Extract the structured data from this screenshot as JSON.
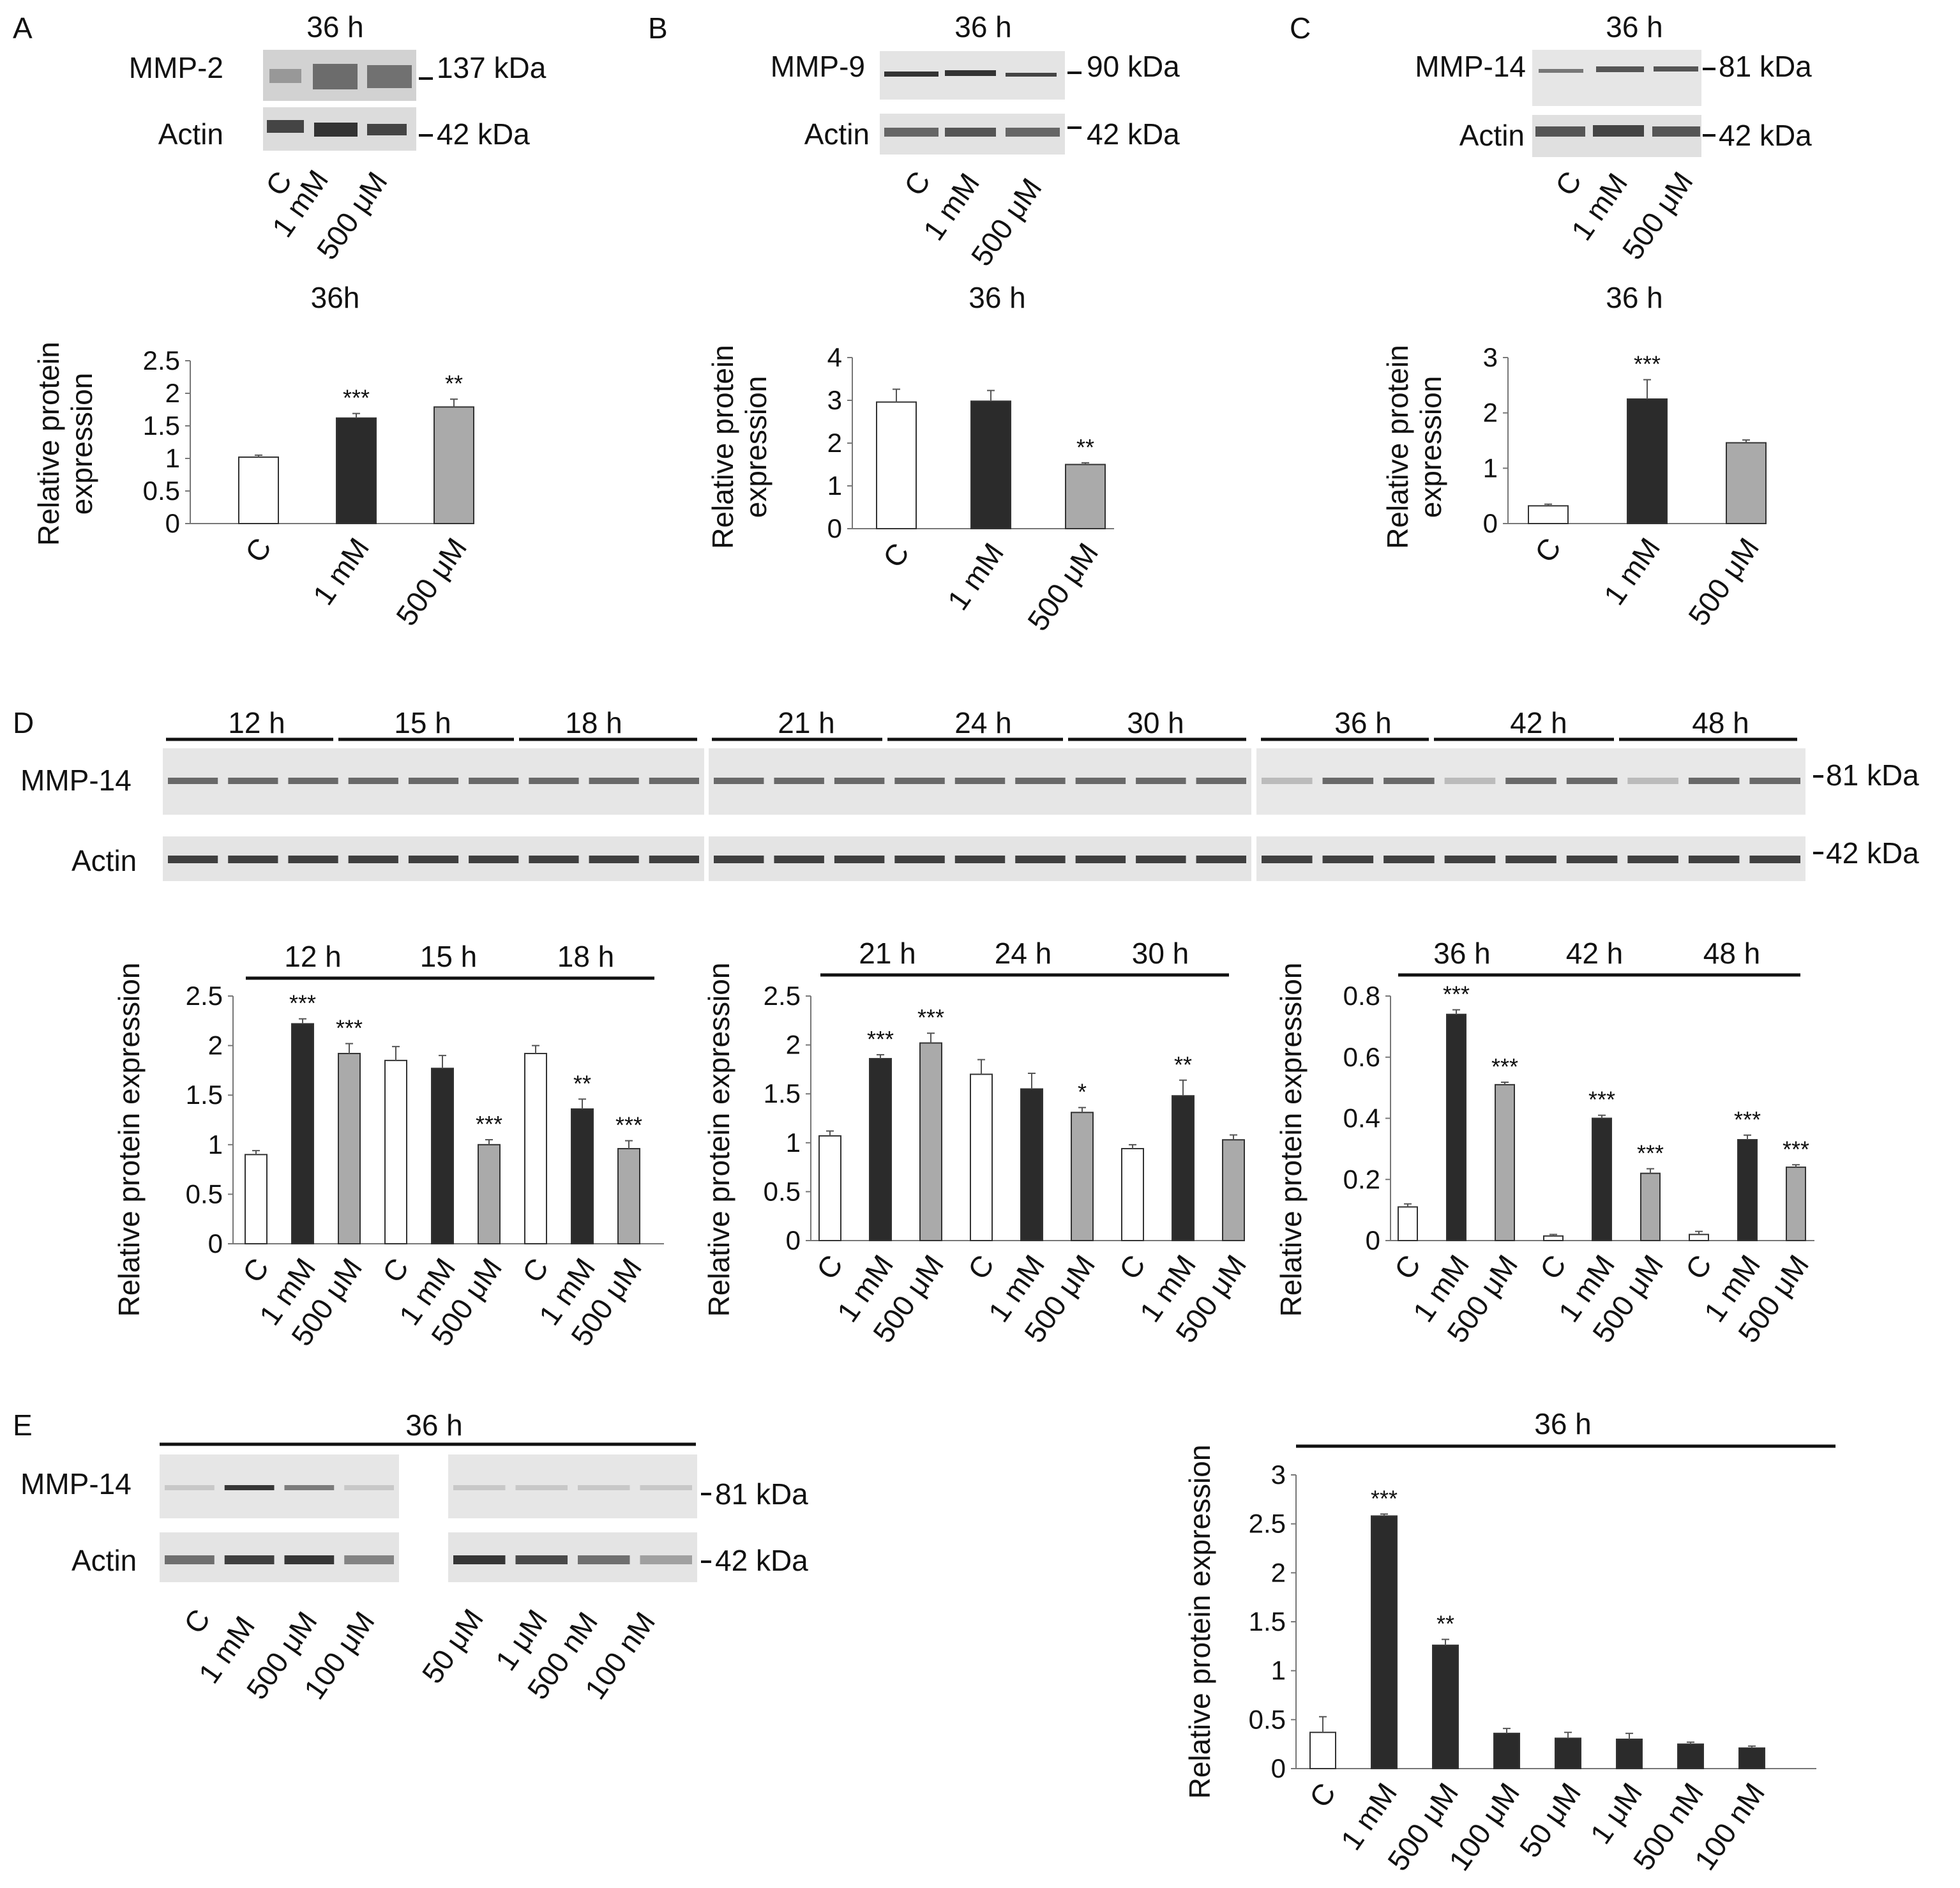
{
  "bar_colors": {
    "control": "#ffffff",
    "one_mM": "#2b2b2b",
    "five_hundred_uM": "#aaaaaa",
    "dark": "#2b2b2b"
  },
  "panel_letters": [
    "A",
    "B",
    "C",
    "D",
    "E"
  ],
  "y_axis_label": "Relative protein",
  "y_axis_label_line2": "expression",
  "y_axis_label_single": "Relative protein expression",
  "panelA": {
    "time_header": "36 h",
    "chart_title": "36h",
    "blot_labels": [
      "MMP-2",
      "Actin"
    ],
    "kda_labels": [
      "137 kDa",
      "42 kDa"
    ],
    "lane_labels": [
      "C",
      "1 mM",
      "500 μM"
    ]
  },
  "panelB": {
    "time_header": "36 h",
    "chart_title": "36 h",
    "blot_labels": [
      "MMP-9",
      "Actin"
    ],
    "kda_labels": [
      "90 kDa",
      "42 kDa"
    ],
    "lane_labels": [
      "C",
      "1 mM",
      "500 μM"
    ]
  },
  "panelC": {
    "time_header": "36 h",
    "chart_title": "36 h",
    "blot_labels": [
      "MMP-14",
      "Actin"
    ],
    "kda_labels": [
      "81 kDa",
      "42 kDa"
    ],
    "lane_labels": [
      "C",
      "1 mM",
      "500 μM"
    ]
  },
  "panelD": {
    "blot_labels": [
      "MMP-14",
      "Actin"
    ],
    "kda_labels": [
      "81 kDa",
      "42 kDa"
    ],
    "time_groups": [
      [
        "12 h",
        "15 h",
        "18 h"
      ],
      [
        "21 h",
        "24 h",
        "30 h"
      ],
      [
        "36 h",
        "42 h",
        "48 h"
      ]
    ]
  },
  "panelE": {
    "time_header": "36 h",
    "blot_labels": [
      "MMP-14",
      "Actin"
    ],
    "kda_labels": [
      "81 kDa",
      "42 kDa"
    ],
    "lane_labels": [
      "C",
      "1 mM",
      "500 μM",
      "100 μM",
      "50 μM",
      "1 μM",
      "500 nM",
      "100 nM"
    ]
  },
  "chart_data": [
    {
      "id": "A",
      "type": "bar",
      "title": "36h",
      "ylabel": "Relative protein expression",
      "categories": [
        "C",
        "1 mM",
        "500 μM"
      ],
      "values": [
        1.02,
        1.62,
        1.79
      ],
      "errors": [
        0.03,
        0.07,
        0.12
      ],
      "significance": [
        "",
        "***",
        "**"
      ],
      "ylim": [
        0,
        2.5
      ],
      "yticks": [
        "0",
        "0.5",
        "1",
        "1.5",
        "2",
        "2.5"
      ]
    },
    {
      "id": "B",
      "type": "bar",
      "title": "36 h",
      "ylabel": "Relative protein expression",
      "categories": [
        "C",
        "1 mM",
        "500 μM"
      ],
      "values": [
        2.96,
        2.98,
        1.5
      ],
      "errors": [
        0.3,
        0.25,
        0.04
      ],
      "significance": [
        "",
        "",
        "**"
      ],
      "ylim": [
        0,
        4
      ],
      "yticks": [
        "0",
        "1",
        "2",
        "3",
        "4"
      ]
    },
    {
      "id": "C",
      "type": "bar",
      "title": "36 h",
      "ylabel": "Relative protein expression",
      "categories": [
        "C",
        "1 mM",
        "500 μM"
      ],
      "values": [
        0.32,
        2.25,
        1.46
      ],
      "errors": [
        0.03,
        0.35,
        0.05
      ],
      "significance": [
        "",
        "***",
        ""
      ],
      "ylim": [
        0,
        3
      ],
      "yticks": [
        "0",
        "1",
        "2",
        "3"
      ]
    },
    {
      "id": "D1",
      "type": "bar",
      "ylabel": "Relative protein expression",
      "groups": [
        "12 h",
        "15 h",
        "18 h"
      ],
      "categories": [
        "C",
        "1 mM",
        "500 μM",
        "C",
        "1 mM",
        "500 μM",
        "C",
        "1 mM",
        "500 μM"
      ],
      "values": [
        0.9,
        2.22,
        1.92,
        1.85,
        1.77,
        1.0,
        1.92,
        1.36,
        0.96
      ],
      "errors": [
        0.04,
        0.05,
        0.1,
        0.14,
        0.13,
        0.05,
        0.08,
        0.1,
        0.08
      ],
      "significance": [
        "",
        "***",
        "***",
        "",
        "",
        "***",
        "",
        "**",
        "***"
      ],
      "ylim": [
        0,
        2.5
      ],
      "yticks": [
        "0",
        "0.5",
        "1",
        "1.5",
        "2",
        "2.5"
      ]
    },
    {
      "id": "D2",
      "type": "bar",
      "ylabel": "Relative protein expression",
      "groups": [
        "21 h",
        "24 h",
        "30 h"
      ],
      "categories": [
        "C",
        "1 mM",
        "500 μM",
        "C",
        "1 mM",
        "500 μM",
        "C",
        "1 mM",
        "500 μM"
      ],
      "values": [
        1.07,
        1.86,
        2.02,
        1.7,
        1.55,
        1.31,
        0.94,
        1.48,
        1.03
      ],
      "errors": [
        0.05,
        0.04,
        0.1,
        0.15,
        0.16,
        0.05,
        0.04,
        0.16,
        0.05
      ],
      "significance": [
        "",
        "***",
        "***",
        "",
        "",
        "*",
        "",
        "**",
        ""
      ],
      "ylim": [
        0,
        2.5
      ],
      "yticks": [
        "0",
        "0.5",
        "1",
        "1.5",
        "2",
        "2.5"
      ]
    },
    {
      "id": "D3",
      "type": "bar",
      "ylabel": "Relative protein expression",
      "groups": [
        "36 h",
        "42 h",
        "48 h"
      ],
      "categories": [
        "C",
        "1 mM",
        "500 μM",
        "C",
        "1 mM",
        "500 μM",
        "C",
        "1 mM",
        "500 μM"
      ],
      "values": [
        0.11,
        0.74,
        0.51,
        0.015,
        0.4,
        0.22,
        0.02,
        0.33,
        0.24
      ],
      "errors": [
        0.01,
        0.015,
        0.008,
        0.005,
        0.01,
        0.015,
        0.01,
        0.015,
        0.008
      ],
      "significance": [
        "",
        "***",
        "***",
        "",
        "***",
        "***",
        "",
        "***",
        "***"
      ],
      "ylim": [
        0,
        0.8
      ],
      "yticks": [
        "0",
        "0.2",
        "0.4",
        "0.6",
        "0.8"
      ]
    },
    {
      "id": "E",
      "type": "bar",
      "title": "36 h",
      "ylabel": "Relative protein expression",
      "categories": [
        "C",
        "1 mM",
        "500 μM",
        "100 μM",
        "50 μM",
        "1 μM",
        "500 nM",
        "100 nM"
      ],
      "values": [
        0.37,
        2.58,
        1.26,
        0.36,
        0.31,
        0.3,
        0.25,
        0.21
      ],
      "errors": [
        0.16,
        0.02,
        0.06,
        0.05,
        0.06,
        0.06,
        0.02,
        0.02
      ],
      "significance": [
        "",
        "***",
        "**",
        "",
        "",
        "",
        "",
        ""
      ],
      "ylim": [
        0,
        3
      ],
      "yticks": [
        "0",
        "0.5",
        "1",
        "1.5",
        "2",
        "2.5",
        "3"
      ]
    }
  ]
}
